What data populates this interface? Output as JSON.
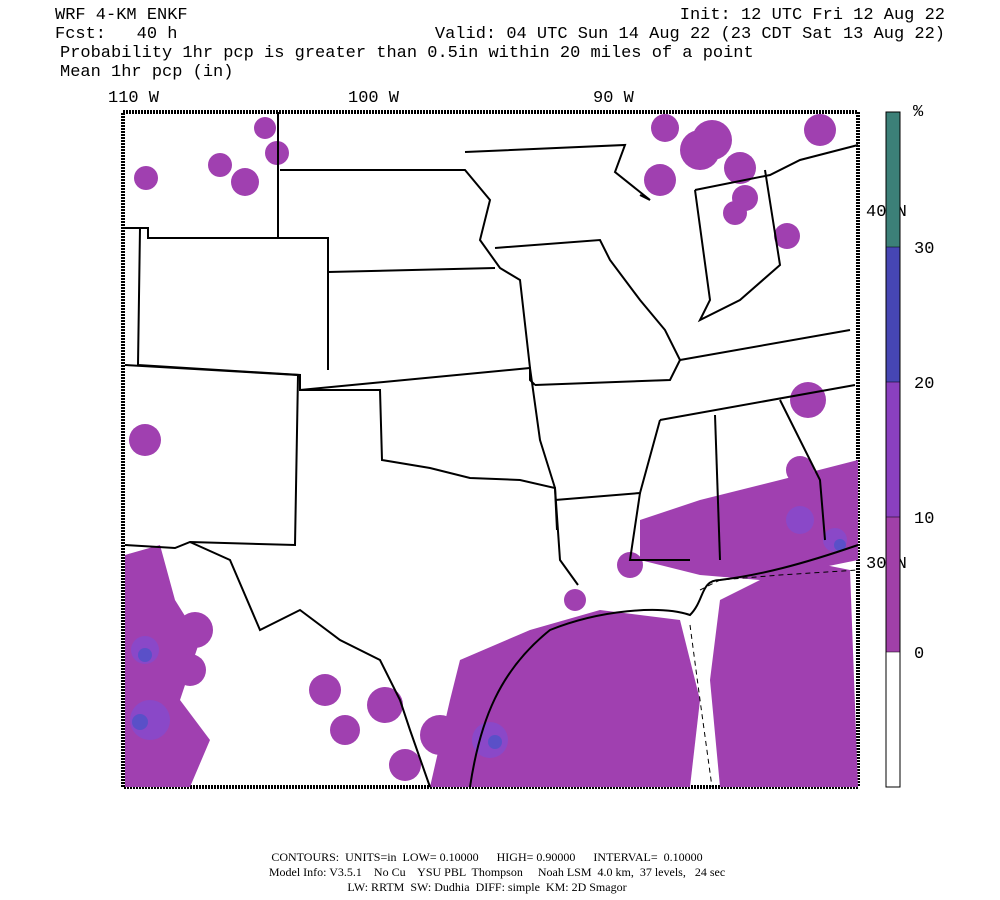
{
  "header": {
    "model": "WRF 4-KM ENKF",
    "init": "Init: 12 UTC Fri 12 Aug 22",
    "forecast": "Fcst:   40 h",
    "valid": "Valid: 04 UTC Sun 14 Aug 22 (23 CDT Sat 13 Aug 22)",
    "field1": "Probability 1hr pcp is greater than 0.5in within 20 miles of a point",
    "field2": "Mean 1hr pcp (in)"
  },
  "map": {
    "longitude_labels": [
      "110 W",
      "100 W",
      "90 W"
    ],
    "latitude_labels": [
      "40 N",
      "30 N"
    ]
  },
  "colorbar": {
    "unit": "%",
    "levels": [
      0,
      10,
      20,
      30
    ],
    "colors": [
      "#ffffff",
      "#a040a8",
      "#8a40c0",
      "#4646b4",
      "#3c8078"
    ]
  },
  "footer": {
    "contours": "CONTOURS:  UNITS=in  LOW= 0.10000      HIGH= 0.90000      INTERVAL=  0.10000",
    "model_info": "Model Info: V3.5.1    No Cu    YSU PBL  Thompson     Noah LSM  4.0 km,  37 levels,   24 sec",
    "physics": "LW: RRTM  SW: Dudhia  DIFF: simple  KM: 2D Smagor"
  }
}
